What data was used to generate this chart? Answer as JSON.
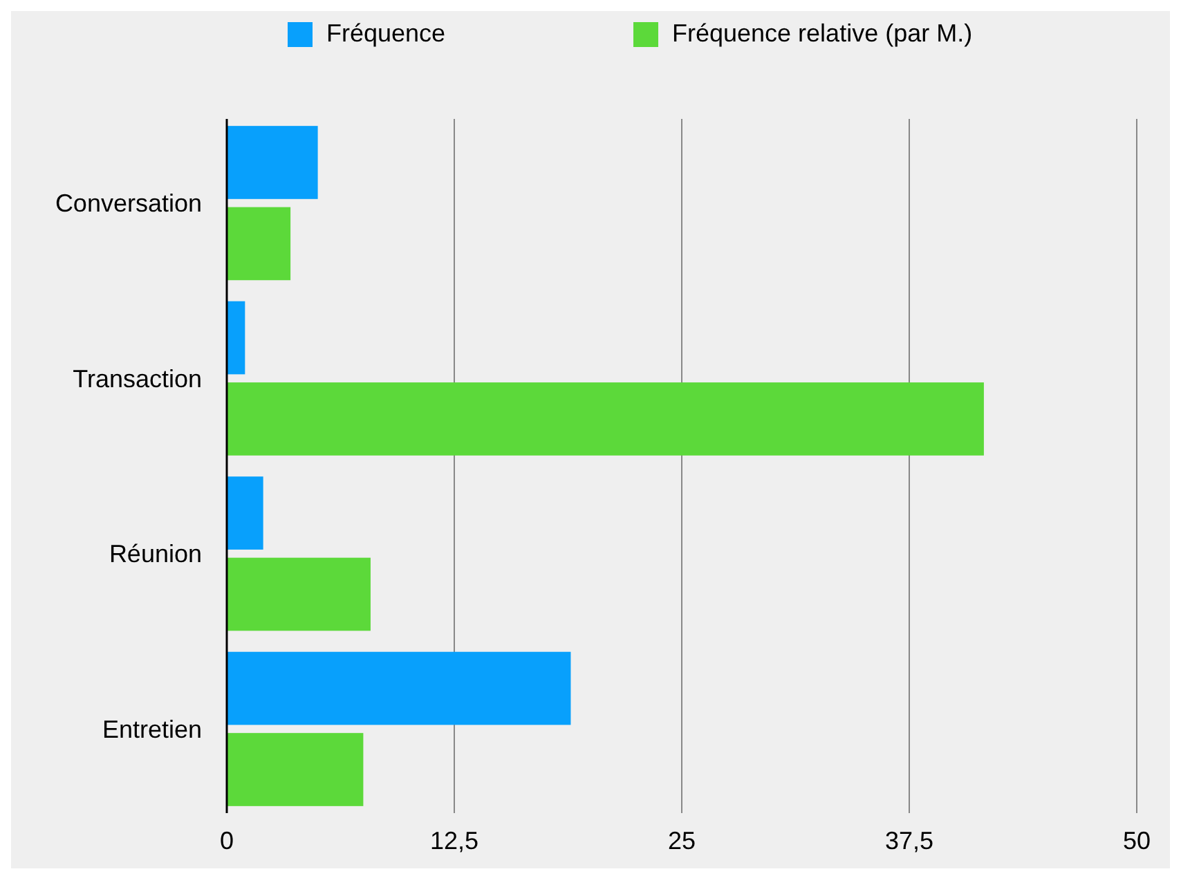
{
  "chart_data": {
    "type": "bar",
    "orientation": "horizontal",
    "categories": [
      "Conversation",
      "Transaction",
      "Réunion",
      "Entretien"
    ],
    "series": [
      {
        "name": "Fréquence",
        "color": "#08a0fc",
        "values": [
          5,
          1,
          2,
          18.9
        ]
      },
      {
        "name": "Fréquence relative (par M.)",
        "color": "#5cd93a",
        "values": [
          3.5,
          41.6,
          7.9,
          7.5
        ]
      }
    ],
    "xlim": [
      0,
      50
    ],
    "xticks": [
      0,
      {
        "value": 12.5,
        "label": "12,5"
      },
      25,
      {
        "value": 37.5,
        "label": "37,5"
      },
      50
    ],
    "grid": "x",
    "legend": "top"
  }
}
